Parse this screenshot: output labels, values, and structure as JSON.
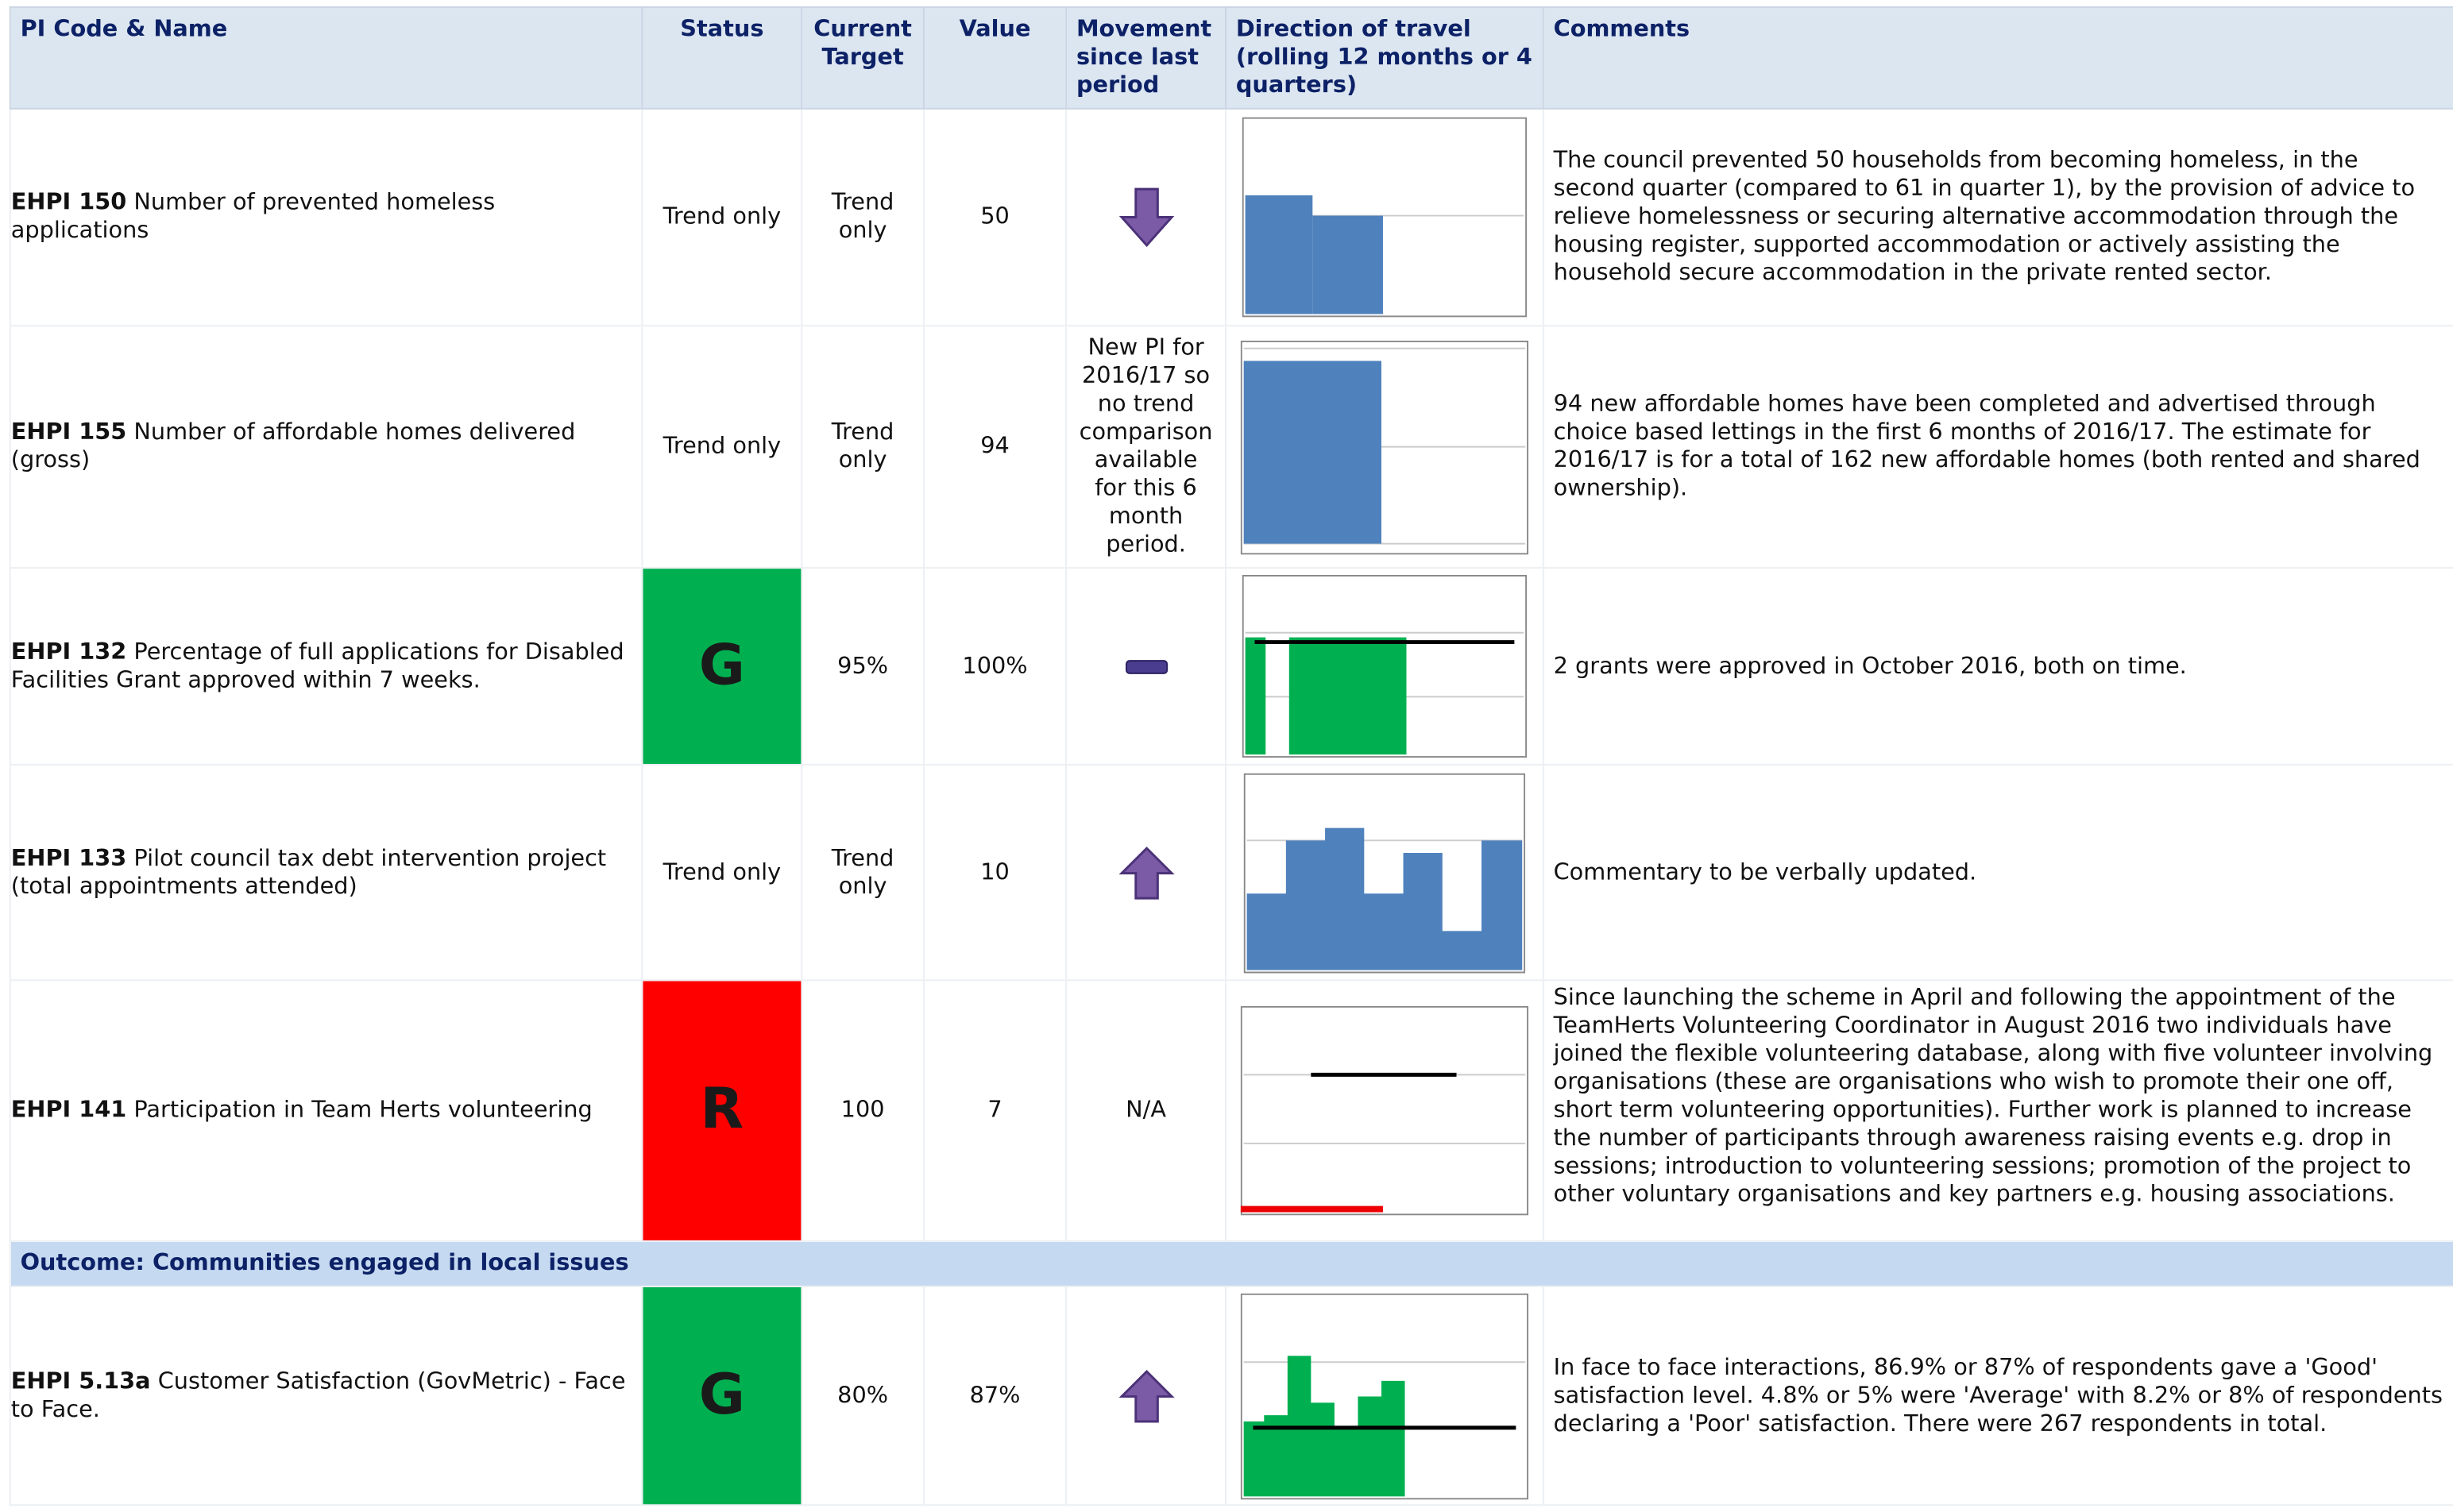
{
  "header": [
    "PI Code & Name",
    "Status",
    "Current Target",
    "Value",
    "Movement since last period",
    "Direction of travel (rolling 12 months or 4 quarters)",
    "Comments"
  ],
  "rows": [
    {
      "code": "EHPI 150",
      "name": "Number of prevented homeless applications",
      "status": "Trend only",
      "target": "Trend only",
      "value": "50",
      "comments": "The council prevented 50 households from becoming homeless, in the second quarter (compared to 61 in quarter 1), by the provision of advice to relieve homelessness or securing alternative accommodation through the housing register, supported accommodation or actively assisting the household secure accommodation in the private rented sector."
    },
    {
      "code": "EHPI 155",
      "name": "Number of affordable homes delivered (gross)",
      "status": "Trend only",
      "target": "Trend only",
      "value": "94",
      "movement": "New PI for 2016/17 so no trend comparison available for this 6 month period.",
      "comments": "94 new affordable homes have been completed and advertised through choice based lettings in the first 6 months of 2016/17. The estimate for 2016/17 is for a total of 162 new affordable homes (both rented and shared ownership)."
    },
    {
      "code": "EHPI 132",
      "name": "Percentage of full applications for Disabled Facilities Grant approved within 7 weeks.",
      "status": "G",
      "status_color": "#00b050",
      "target": "95%",
      "value": "100%",
      "comments": "2 grants were approved in October 2016, both on time."
    },
    {
      "code": "EHPI 133",
      "name": "Pilot council tax debt intervention project (total appointments attended)",
      "status": "Trend only",
      "target": "Trend only",
      "value": "10",
      "comments": "Commentary to be verbally updated."
    },
    {
      "code": "EHPI 141",
      "name": "Participation in Team Herts volunteering",
      "status": "R",
      "status_color": "#ff0000",
      "target": "100",
      "value": "7",
      "movement": "N/A",
      "comments": "Since launching the scheme in April and following the appointment of the TeamHerts Volunteering Coordinator in August 2016 two individuals have joined the flexible volunteering database, along with five volunteer involving organisations (these are organisations who wish to promote their one off, short term volunteering opportunities). Further work is planned to increase the number of participants through awareness raising events e.g. drop in sessions; introduction to volunteering sessions; promotion of the project to other voluntary organisations and key partners e.g. housing associations."
    },
    {
      "code": "EHPI 5.13a",
      "name": "Customer Satisfaction (GovMetric) - Face to Face.",
      "status": "G",
      "status_color": "#00b050",
      "target": "80%",
      "value": "87%",
      "comments": "In face to face interactions, 86.9% or 87% of respondents gave a 'Good' satisfaction level. 4.8% or 5% were 'Average' with 8.2% or 8% of respondents declaring a 'Poor' satisfaction. There were 267 respondents in total."
    }
  ],
  "outcome": "Outcome: Communities engaged in local issues"
}
